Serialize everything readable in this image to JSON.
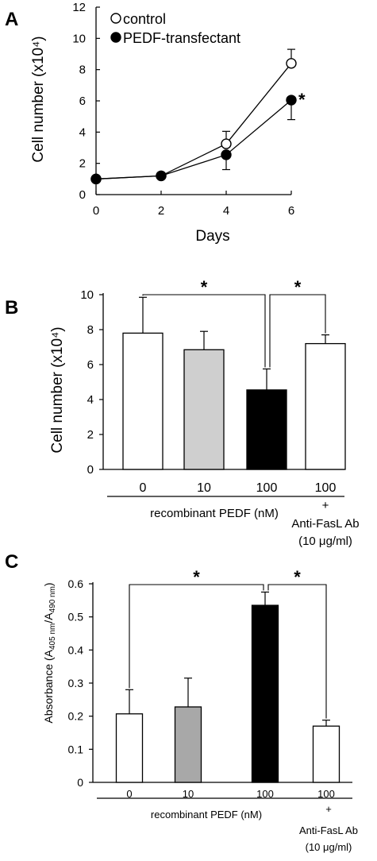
{
  "panels": {
    "a": {
      "letter": "A"
    },
    "b": {
      "letter": "B"
    },
    "c": {
      "letter": "C"
    }
  },
  "chart_data": [
    {
      "type": "line",
      "panel": "A",
      "xlabel": "Days",
      "ylabel": "Cell number (x10⁴)",
      "xlim": [
        0,
        6
      ],
      "ylim": [
        0,
        12
      ],
      "xticks": [
        0,
        2,
        4,
        6
      ],
      "yticks": [
        0,
        2,
        4,
        6,
        8,
        10,
        12
      ],
      "legend_position": "top-left",
      "series": [
        {
          "name": "control",
          "marker": "open-circle",
          "color": "#ffffff",
          "x": [
            0,
            2,
            4,
            6
          ],
          "y": [
            1.0,
            1.2,
            3.25,
            8.4
          ],
          "err": [
            0,
            0,
            0.8,
            0.9
          ]
        },
        {
          "name": "PEDF-transfectant",
          "marker": "filled-circle",
          "color": "#000000",
          "x": [
            0,
            2,
            4,
            6
          ],
          "y": [
            1.0,
            1.2,
            2.55,
            6.05
          ],
          "err": [
            0,
            0,
            0.95,
            1.25
          ]
        }
      ],
      "annotations": [
        {
          "text": "*",
          "at_series": 1,
          "at_index": 3
        }
      ]
    },
    {
      "type": "bar",
      "panel": "B",
      "ylabel": "Cell number (x10⁴)",
      "ylim": [
        0,
        10
      ],
      "yticks": [
        0,
        2,
        4,
        6,
        8,
        10
      ],
      "categories": [
        "0",
        "10",
        "100",
        "100"
      ],
      "values": [
        7.8,
        6.85,
        4.55,
        7.2
      ],
      "errors": [
        2.05,
        1.05,
        1.2,
        0.5
      ],
      "bar_colors": [
        "#ffffff",
        "#cfcfcf",
        "#000000",
        "#ffffff"
      ],
      "group_label": "recombinant PEDF (nM)",
      "extra_label": {
        "plus": "+",
        "line1": "Anti-FasL Ab",
        "line2": "(10 μg/ml)"
      },
      "significance": [
        {
          "from": 0,
          "to": 2,
          "text": "*"
        },
        {
          "from": 2,
          "to": 3,
          "text": "*"
        }
      ]
    },
    {
      "type": "bar",
      "panel": "C",
      "ylabel": "Absorbance (A405 nm/A490 nm)",
      "ylabel_parts": {
        "pre": "Absorbance (A",
        "sub1": "405 nm",
        "mid": "/A",
        "sub2": "490 nm",
        "post": ")"
      },
      "ylim": [
        0,
        0.6
      ],
      "yticks": [
        "0",
        "0.1",
        "0.2",
        "0.3",
        "0.4",
        "0.5",
        "0.6"
      ],
      "categories": [
        "0",
        "10",
        "100",
        "100"
      ],
      "values": [
        0.207,
        0.228,
        0.535,
        0.17
      ],
      "errors": [
        0.073,
        0.087,
        0.04,
        0.018
      ],
      "bar_colors": [
        "#ffffff",
        "#a8a8a8",
        "#000000",
        "#ffffff"
      ],
      "group_label": "recombinant PEDF (nM)",
      "extra_label": {
        "plus": "+",
        "line1": "Anti-FasL Ab",
        "line2": "(10 μg/ml)"
      },
      "significance": [
        {
          "from": 0,
          "to": 2,
          "text": "*"
        },
        {
          "from": 2,
          "to": 3,
          "text": "*"
        }
      ]
    }
  ]
}
